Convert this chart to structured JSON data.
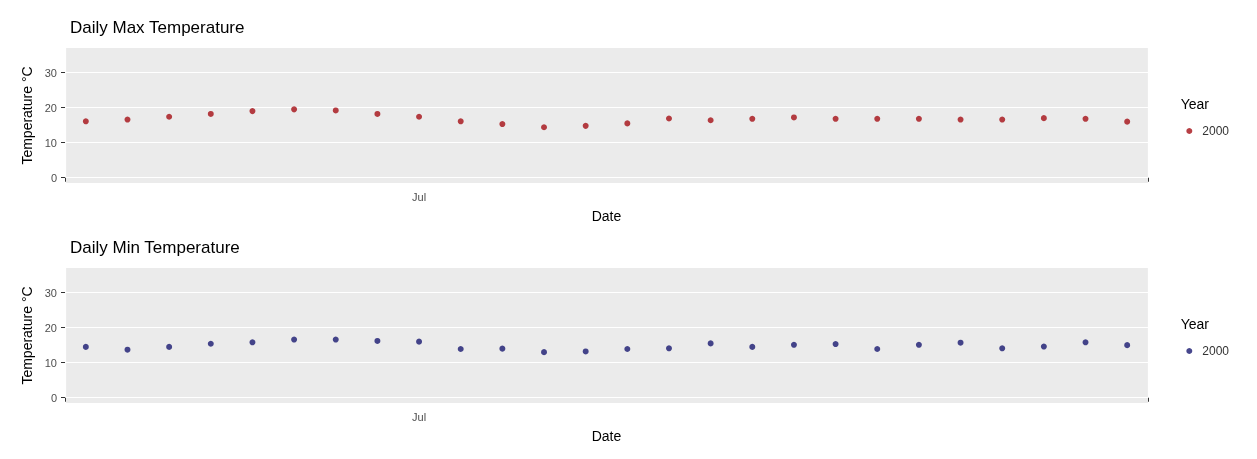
{
  "chart_data": [
    {
      "type": "scatter",
      "title": "Daily Max Temperature",
      "xlabel": "Date",
      "ylabel": "Temperature °C",
      "legend_title": "Year",
      "legend": "right",
      "grid": true,
      "marker": "circle",
      "categories": [
        null,
        null,
        null,
        null,
        null,
        null,
        null,
        null,
        "Jul",
        null,
        null,
        null,
        null,
        null,
        null,
        null,
        null,
        null,
        null,
        null,
        null,
        null,
        null,
        null,
        null,
        null
      ],
      "ylim": [
        -1.5,
        37
      ],
      "yticks": [
        0,
        10,
        20,
        30
      ],
      "series": [
        {
          "name": "2000",
          "color": "#a50f15",
          "values": [
            16.1,
            16.6,
            17.4,
            18.2,
            19.0,
            19.5,
            19.2,
            18.2,
            17.4,
            16.1,
            15.3,
            14.4,
            14.8,
            15.5,
            16.9,
            16.4,
            16.8,
            17.2,
            16.8,
            16.8,
            16.8,
            16.6,
            16.6,
            17.0,
            16.8,
            16.0
          ]
        }
      ]
    },
    {
      "type": "scatter",
      "title": "Daily Min Temperature",
      "xlabel": "Date",
      "ylabel": "Temperature °C",
      "legend_title": "Year",
      "legend": "right",
      "grid": true,
      "marker": "circle",
      "categories": [
        null,
        null,
        null,
        null,
        null,
        null,
        null,
        null,
        "Jul",
        null,
        null,
        null,
        null,
        null,
        null,
        null,
        null,
        null,
        null,
        null,
        null,
        null,
        null,
        null,
        null,
        null
      ],
      "ylim": [
        -1.5,
        37
      ],
      "yticks": [
        0,
        10,
        20,
        30
      ],
      "series": [
        {
          "name": "2000",
          "color": "#191970",
          "values": [
            14.5,
            13.7,
            14.5,
            15.4,
            15.8,
            16.6,
            16.6,
            16.2,
            16.0,
            13.9,
            14.0,
            13.0,
            13.2,
            13.9,
            14.1,
            15.5,
            14.5,
            15.1,
            15.3,
            13.9,
            15.1,
            15.7,
            14.1,
            14.6,
            15.8,
            15.0
          ]
        }
      ]
    }
  ]
}
